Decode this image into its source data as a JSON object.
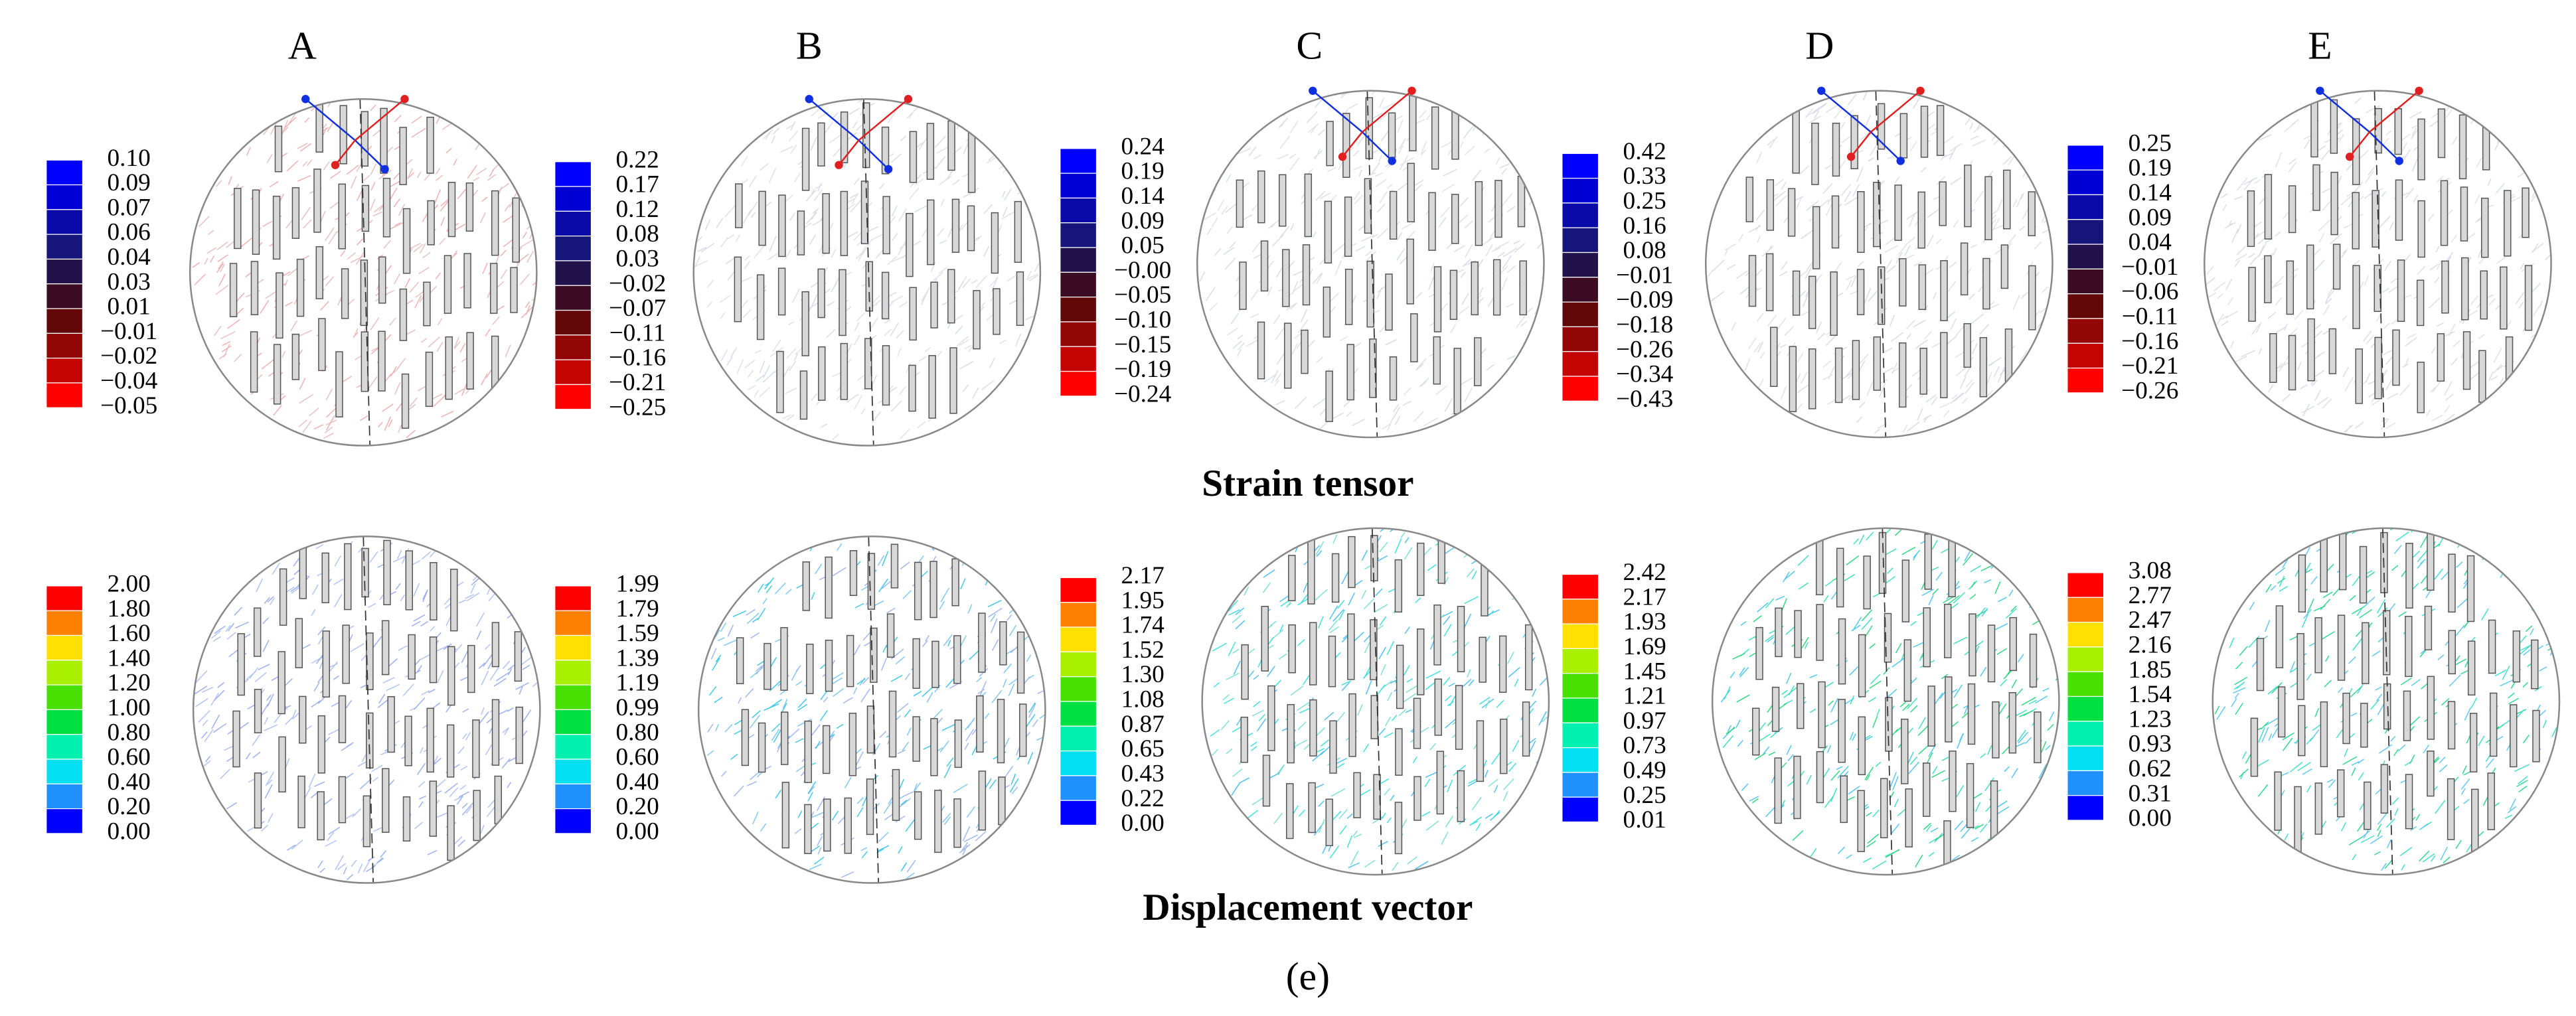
{
  "panels": [
    {
      "label": "A",
      "strain_scale": [
        "0.10",
        "0.09",
        "0.07",
        "0.06",
        "0.04",
        "0.03",
        "0.01",
        "−0.01",
        "−0.02",
        "−0.04",
        "−0.05"
      ],
      "displacement_scale": [
        "2.00",
        "1.80",
        "1.60",
        "1.40",
        "1.20",
        "1.00",
        "0.80",
        "0.60",
        "0.40",
        "0.20",
        "0.00"
      ]
    },
    {
      "label": "B",
      "strain_scale": [
        "0.22",
        "0.17",
        "0.12",
        "0.08",
        "0.03",
        "−0.02",
        "−0.07",
        "−0.11",
        "−0.16",
        "−0.21",
        "−0.25"
      ],
      "displacement_scale": [
        "1.99",
        "1.79",
        "1.59",
        "1.39",
        "1.19",
        "0.99",
        "0.80",
        "0.60",
        "0.40",
        "0.20",
        "0.00"
      ]
    },
    {
      "label": "C",
      "strain_scale": [
        "0.24",
        "0.19",
        "0.14",
        "0.09",
        "0.05",
        "−0.00",
        "−0.05",
        "−0.10",
        "−0.15",
        "−0.19",
        "−0.24"
      ],
      "displacement_scale": [
        "2.17",
        "1.95",
        "1.74",
        "1.52",
        "1.30",
        "1.08",
        "0.87",
        "0.65",
        "0.43",
        "0.22",
        "0.00"
      ]
    },
    {
      "label": "D",
      "strain_scale": [
        "0.42",
        "0.33",
        "0.25",
        "0.16",
        "0.08",
        "−0.01",
        "−0.09",
        "−0.18",
        "−0.26",
        "−0.34",
        "−0.43"
      ],
      "displacement_scale": [
        "2.42",
        "2.17",
        "1.93",
        "1.69",
        "1.45",
        "1.21",
        "0.97",
        "0.73",
        "0.49",
        "0.25",
        "0.01"
      ]
    },
    {
      "label": "E",
      "strain_scale": [
        "0.25",
        "0.19",
        "0.14",
        "0.09",
        "0.04",
        "−0.01",
        "−0.06",
        "−0.11",
        "−0.16",
        "−0.21",
        "−0.26"
      ],
      "displacement_scale": [
        "3.08",
        "2.77",
        "2.47",
        "2.16",
        "1.85",
        "1.54",
        "1.23",
        "0.93",
        "0.62",
        "0.31",
        "0.00"
      ]
    }
  ],
  "strain_title": "Strain tensor",
  "displacement_title": "Displacement vector",
  "caption": "(e)"
}
